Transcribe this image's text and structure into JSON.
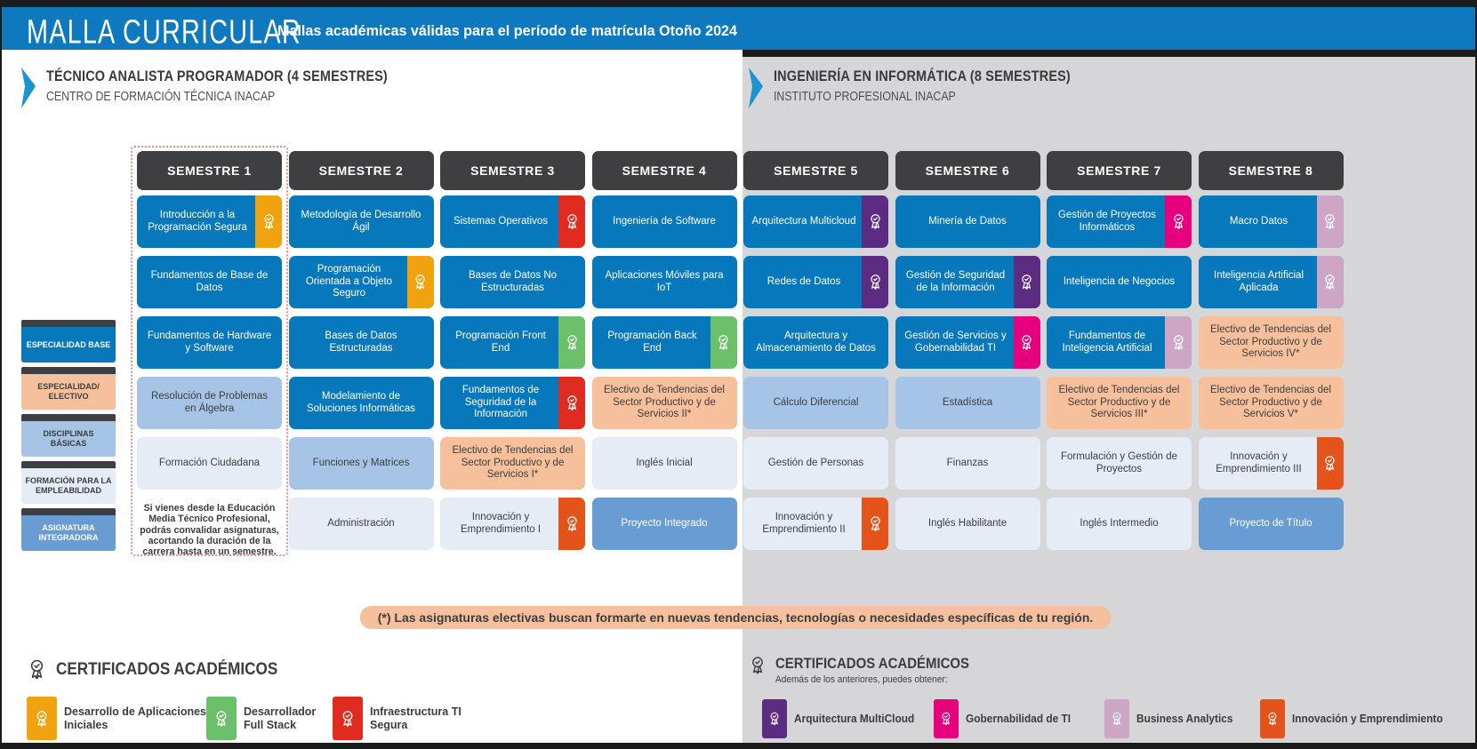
{
  "header": {
    "title": "MALLA CURRICULAR",
    "subtitle": "Mallas académicas válidas para el período de matrícula Otoño 2024"
  },
  "programs": [
    {
      "title": "TÉCNICO ANALISTA PROGRAMADOR (4 SEMESTRES)",
      "subtitle": "CENTRO DE FORMACIÓN TÉCNICA INACAP"
    },
    {
      "title": "INGENIERÍA EN INFORMÁTICA (8 SEMESTRES)",
      "subtitle": "INSTITUTO PROFESIONAL INACAP"
    }
  ],
  "legend": [
    {
      "label": "ESPECIALIDAD BASE",
      "type": "base"
    },
    {
      "label": "ESPECIALIDAD/ ELECTIVO",
      "type": "electivo"
    },
    {
      "label": "DISCIPLINAS BÁSICAS",
      "type": "disciplina"
    },
    {
      "label": "FORMACIÓN PARA LA EMPLEABILIDAD",
      "type": "empleabilidad"
    },
    {
      "label": "ASIGNATURA INTEGRADORA",
      "type": "integradora"
    }
  ],
  "semesters": [
    {
      "title": "SEMESTRE 1",
      "highlighted": true,
      "courses": [
        {
          "name": "Introducción a la Programación Segura",
          "type": "base",
          "badge": "orange"
        },
        {
          "name": "Fundamentos de Base de Datos",
          "type": "base"
        },
        {
          "name": "Fundamentos de Hardware y Software",
          "type": "base"
        },
        {
          "name": "Resolución de Problemas en Álgebra",
          "type": "disciplina"
        },
        {
          "name": "Formación Ciudadana",
          "type": "empleabilidad"
        }
      ],
      "note": "Si vienes desde la Educación Media Técnico Profesional, podrás convalidar asignaturas, acortando la duración de la carrera hasta en un semestre."
    },
    {
      "title": "SEMESTRE 2",
      "courses": [
        {
          "name": "Metodología de Desarrollo Ágil",
          "type": "base"
        },
        {
          "name": "Programación Orientada a Objeto Seguro",
          "type": "base",
          "badge": "orange"
        },
        {
          "name": "Bases de Datos Estructuradas",
          "type": "base"
        },
        {
          "name": "Modelamiento de Soluciones Informáticas",
          "type": "base"
        },
        {
          "name": "Funciones y Matrices",
          "type": "disciplina"
        },
        {
          "name": "Administración",
          "type": "empleabilidad"
        }
      ]
    },
    {
      "title": "SEMESTRE 3",
      "courses": [
        {
          "name": "Sistemas Operativos",
          "type": "base",
          "badge": "red"
        },
        {
          "name": "Bases de Datos No Estructuradas",
          "type": "base"
        },
        {
          "name": "Programación Front End",
          "type": "base",
          "badge": "green"
        },
        {
          "name": "Fundamentos de Seguridad de la Información",
          "type": "base",
          "badge": "red"
        },
        {
          "name": "Electivo de Tendencias del Sector Productivo y de Servicios I*",
          "type": "electivo"
        },
        {
          "name": "Innovación y Emprendimiento I",
          "type": "empleabilidad",
          "badge": "orangered"
        }
      ]
    },
    {
      "title": "SEMESTRE 4",
      "courses": [
        {
          "name": "Ingeniería de Software",
          "type": "base"
        },
        {
          "name": "Aplicaciones Móviles para IoT",
          "type": "base"
        },
        {
          "name": "Programación Back End",
          "type": "base",
          "badge": "green"
        },
        {
          "name": "Electivo de Tendencias del Sector Productivo y de Servicios II*",
          "type": "electivo"
        },
        {
          "name": "Inglés Inicial",
          "type": "empleabilidad"
        },
        {
          "name": "Proyecto Integrado",
          "type": "integradora"
        }
      ]
    },
    {
      "title": "SEMESTRE 5",
      "courses": [
        {
          "name": "Arquitectura Multicloud",
          "type": "base",
          "badge": "purple"
        },
        {
          "name": "Redes de Datos",
          "type": "base",
          "badge": "purple"
        },
        {
          "name": "Arquitectura y Almacenamiento de Datos",
          "type": "base"
        },
        {
          "name": "Cálculo Diferencial",
          "type": "disciplina"
        },
        {
          "name": "Gestión de Personas",
          "type": "empleabilidad"
        },
        {
          "name": "Innovación y Emprendimiento II",
          "type": "empleabilidad",
          "badge": "orangered"
        }
      ]
    },
    {
      "title": "SEMESTRE 6",
      "courses": [
        {
          "name": "Minería de Datos",
          "type": "base"
        },
        {
          "name": "Gestión de Seguridad de la Información",
          "type": "base",
          "badge": "purple"
        },
        {
          "name": "Gestión de Servicios y Gobernabilidad TI",
          "type": "base",
          "badge": "pink"
        },
        {
          "name": "Estadística",
          "type": "disciplina"
        },
        {
          "name": "Finanzas",
          "type": "empleabilidad"
        },
        {
          "name": "Inglés Habilitante",
          "type": "empleabilidad"
        }
      ]
    },
    {
      "title": "SEMESTRE 7",
      "courses": [
        {
          "name": "Gestión de Proyectos Informáticos",
          "type": "base",
          "badge": "pink"
        },
        {
          "name": "Inteligencia de Negocios",
          "type": "base"
        },
        {
          "name": "Fundamentos de Inteligencia Artificial",
          "type": "base",
          "badge": "mauve"
        },
        {
          "name": "Electivo de Tendencias del Sector Productivo y de Servicios III*",
          "type": "electivo"
        },
        {
          "name": "Formulación y Gestión de Proyectos",
          "type": "empleabilidad"
        },
        {
          "name": "Inglés Intermedio",
          "type": "empleabilidad"
        }
      ]
    },
    {
      "title": "SEMESTRE 8",
      "courses": [
        {
          "name": "Macro Datos",
          "type": "base",
          "badge": "mauve"
        },
        {
          "name": "Inteligencia Artificial Aplicada",
          "type": "base",
          "badge": "mauve"
        },
        {
          "name": "Electivo de Tendencias del Sector Productivo y de Servicios IV*",
          "type": "electivo"
        },
        {
          "name": "Electivo de Tendencias del Sector Productivo y de Servicios V*",
          "type": "electivo"
        },
        {
          "name": "Innovación y Emprendimiento III",
          "type": "empleabilidad",
          "badge": "orangered"
        },
        {
          "name": "Proyecto de Título",
          "type": "integradora"
        }
      ]
    }
  ],
  "footnote": "(*) Las asignaturas electivas buscan formarte en nuevas tendencias, tecnologías o necesidades específicas de tu región.",
  "certificates_left": {
    "title": "CERTIFICADOS ACADÉMICOS",
    "items": [
      {
        "label": "Desarrollo de Aplicaciones Iniciales",
        "badge": "orange"
      },
      {
        "label": "Desarrollador Full Stack",
        "badge": "green"
      },
      {
        "label": "Infraestructura TI Segura",
        "badge": "red"
      }
    ]
  },
  "certificates_right": {
    "title": "CERTIFICADOS ACADÉMICOS",
    "subtitle": "Además de los anteriores, puedes obtener:",
    "items": [
      {
        "label": "Arquitectura MultiCloud",
        "badge": "purple"
      },
      {
        "label": "Gobernabilidad de TI",
        "badge": "pink"
      },
      {
        "label": "Business Analytics",
        "badge": "mauve"
      },
      {
        "label": "Innovación y Emprendimiento",
        "badge": "orangered"
      }
    ]
  },
  "colors": {
    "header_blue": "#0e79be",
    "arrow_blue": "#1d94d2",
    "panel_gray": "#d6d6d8",
    "dark": "#3f3f41",
    "base": "#0878bd",
    "electivo": "#f7c09c",
    "disciplina": "#a6c4e6",
    "empleabilidad": "#e6ecf5",
    "integradora": "#689cd2",
    "badge_orange": "#f0a30e",
    "badge_red": "#e02b20",
    "badge_green": "#6dc06a",
    "badge_orangered": "#e4531a",
    "badge_purple": "#5c2c83",
    "badge_pink": "#e6007e",
    "badge_mauve": "#cda6c6"
  }
}
